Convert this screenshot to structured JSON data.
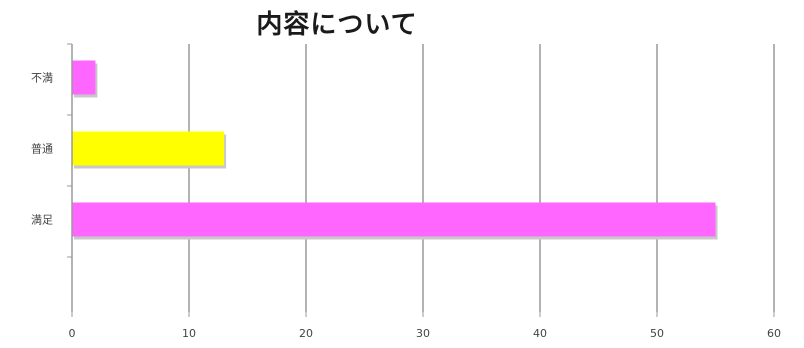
{
  "chart_data": {
    "type": "bar",
    "orientation": "horizontal",
    "title": "内容について",
    "categories": [
      "不満",
      "普通",
      "満足"
    ],
    "values": [
      2,
      13,
      55
    ],
    "colors": [
      "#ff66ff",
      "#ffff00",
      "#ff66ff"
    ],
    "xlim": [
      0,
      60
    ],
    "xticks": [
      0,
      10,
      20,
      30,
      40,
      50,
      60
    ],
    "grid": true,
    "legend": "none"
  }
}
